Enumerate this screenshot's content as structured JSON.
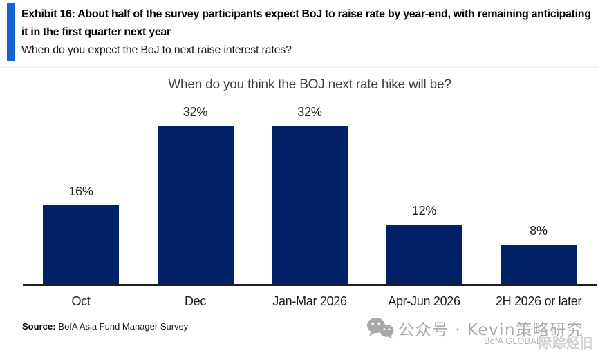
{
  "page": {
    "background": "#ffffff"
  },
  "header": {
    "accent_color": "#1565d6",
    "title": "Exhibit 16: About half of the survey participants expect BoJ to raise rate by year-end, with remaining anticipating it in the first quarter next year",
    "subtitle": "When do you expect the BoJ to next raise interest rates?"
  },
  "chart_data": {
    "type": "bar",
    "title": "When do you think the BOJ next rate hike will be?",
    "categories": [
      "Oct",
      "Dec",
      "Jan-Mar 2026",
      "Apr-Jun 2026",
      "2H 2026 or later"
    ],
    "values": [
      16,
      32,
      32,
      12,
      8
    ],
    "data_labels": [
      "16%",
      "32%",
      "32%",
      "12%",
      "8%"
    ],
    "unit": "%",
    "bar_color": "#012169",
    "axis_color": "#1f1f1f",
    "xlabel": "",
    "ylabel": "",
    "ylim": [
      0,
      36
    ],
    "grid": false,
    "legend": false
  },
  "footer": {
    "source_label": "Source:",
    "source_text": "BofA Asia Fund Manager Survey",
    "brand_text": "BofA GLOBAL R",
    "overlay_glyphs": "际踪烃旧"
  },
  "watermark": {
    "icon": "wechat-icon",
    "text": "公众号 · Kevin策略研究",
    "color": "#a9a9a9"
  }
}
